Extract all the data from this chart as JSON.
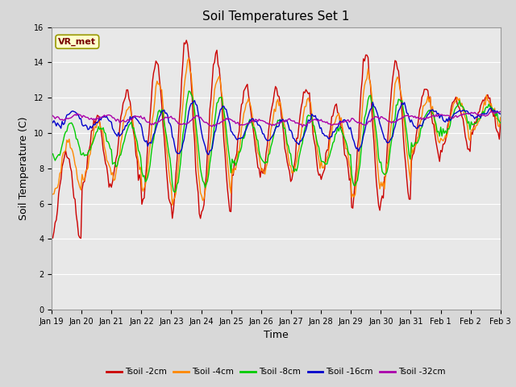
{
  "title": "Soil Temperatures Set 1",
  "xlabel": "Time",
  "ylabel": "Soil Temperature (C)",
  "annotation": "VR_met",
  "ylim": [
    0,
    16
  ],
  "yticks": [
    0,
    2,
    4,
    6,
    8,
    10,
    12,
    14,
    16
  ],
  "xtick_labels": [
    "Jan 19",
    "Jan 20",
    "Jan 21",
    "Jan 22",
    "Jan 23",
    "Jan 24",
    "Jan 25",
    "Jan 26",
    "Jan 27",
    "Jan 28",
    "Jan 29",
    "Jan 30",
    "Jan 31",
    "Feb 1",
    "Feb 2",
    "Feb 3"
  ],
  "colors": {
    "Tsoil -2cm": "#cc0000",
    "Tsoil -4cm": "#ff8800",
    "Tsoil -8cm": "#00cc00",
    "Tsoil -16cm": "#0000cc",
    "Tsoil -32cm": "#aa00aa"
  },
  "legend_labels": [
    "Tsoil -2cm",
    "Tsoil -4cm",
    "Tsoil -8cm",
    "Tsoil -16cm",
    "Tsoil -32cm"
  ],
  "fig_facecolor": "#d8d8d8",
  "ax_facecolor": "#e8e8e8",
  "grid_color": "#ffffff",
  "title_fontsize": 11,
  "axis_label_fontsize": 9,
  "tick_fontsize": 7,
  "linewidth": 1.0
}
